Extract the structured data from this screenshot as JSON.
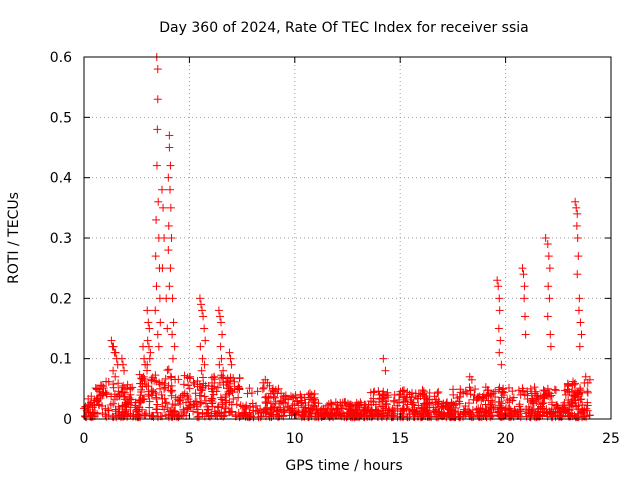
{
  "chart_data": {
    "type": "scatter",
    "title": "Day 360 of 2024, Rate Of TEC Index for receiver ssia",
    "xlabel": "GPS time / hours",
    "ylabel": "ROTI / TECUs",
    "xlim": [
      0,
      25
    ],
    "ylim": [
      0,
      0.6
    ],
    "xticks": [
      "0",
      "5",
      "10",
      "15",
      "20",
      "25"
    ],
    "yticks": [
      "0",
      "0.1",
      "0.2",
      "0.3",
      "0.4",
      "0.5",
      "0.6"
    ],
    "grid": true,
    "legend": "none",
    "marker": "+",
    "marker_color": "#ff0000",
    "series": [
      {
        "x": [
          3.45,
          3.5,
          3.5,
          3.48,
          3.46,
          3.52,
          3.42,
          3.55,
          3.4,
          3.58,
          3.44,
          3.6,
          3.38,
          3.62,
          3.5,
          3.55,
          3.7,
          3.75,
          3.8,
          3.72,
          3.9,
          3.95,
          4.05,
          4.05,
          4.1,
          4.0,
          4.08,
          4.12,
          4.02,
          4.15,
          4.0,
          4.1,
          4.05,
          4.2,
          4.25,
          4.18,
          4.3,
          4.22,
          3.0,
          3.05,
          3.1,
          3.02,
          3.08,
          3.15,
          3.12,
          3.0,
          1.3,
          1.35,
          1.4,
          1.45,
          1.5,
          1.55,
          1.6,
          1.38,
          1.48,
          1.8,
          1.85,
          1.9,
          2.8,
          2.85,
          2.9,
          5.5,
          5.55,
          5.6,
          5.65,
          5.7,
          5.75,
          5.52,
          5.62,
          5.72,
          5.58,
          6.4,
          6.45,
          6.5,
          6.55,
          6.48,
          6.52,
          6.42,
          6.6,
          6.9,
          6.95,
          7.0,
          8.5,
          8.6,
          8.7,
          8.8,
          14.2,
          14.3,
          18.3,
          18.4,
          19.6,
          19.65,
          19.7,
          19.72,
          19.68,
          19.75,
          19.7,
          19.8,
          20.8,
          20.85,
          20.9,
          20.88,
          20.92,
          20.95,
          21.9,
          22.0,
          22.05,
          22.1,
          22.02,
          22.08,
          22.0,
          22.12,
          22.15,
          23.3,
          23.35,
          23.4,
          23.38,
          23.42,
          23.45,
          23.4,
          23.5,
          23.48,
          23.55,
          23.6,
          23.52,
          23.8,
          23.9,
          24.0
        ],
        "y": [
          0.6,
          0.58,
          0.53,
          0.48,
          0.42,
          0.36,
          0.33,
          0.3,
          0.27,
          0.25,
          0.22,
          0.2,
          0.18,
          0.16,
          0.14,
          0.12,
          0.38,
          0.35,
          0.3,
          0.25,
          0.2,
          0.15,
          0.47,
          0.45,
          0.42,
          0.4,
          0.38,
          0.35,
          0.32,
          0.3,
          0.28,
          0.25,
          0.22,
          0.2,
          0.16,
          0.14,
          0.12,
          0.1,
          0.18,
          0.16,
          0.15,
          0.13,
          0.12,
          0.11,
          0.1,
          0.09,
          0.13,
          0.12,
          0.12,
          0.11,
          0.11,
          0.1,
          0.09,
          0.08,
          0.07,
          0.1,
          0.09,
          0.08,
          0.12,
          0.1,
          0.09,
          0.2,
          0.19,
          0.18,
          0.17,
          0.15,
          0.13,
          0.12,
          0.1,
          0.09,
          0.08,
          0.18,
          0.17,
          0.16,
          0.14,
          0.12,
          0.1,
          0.09,
          0.08,
          0.11,
          0.1,
          0.09,
          0.06,
          0.065,
          0.06,
          0.055,
          0.1,
          0.08,
          0.07,
          0.065,
          0.23,
          0.22,
          0.2,
          0.18,
          0.15,
          0.13,
          0.11,
          0.09,
          0.25,
          0.24,
          0.22,
          0.2,
          0.17,
          0.14,
          0.3,
          0.29,
          0.27,
          0.25,
          0.22,
          0.2,
          0.17,
          0.14,
          0.12,
          0.36,
          0.35,
          0.34,
          0.32,
          0.3,
          0.27,
          0.24,
          0.2,
          0.18,
          0.16,
          0.14,
          0.12,
          0.07,
          0.06,
          0.065
        ]
      }
    ]
  }
}
